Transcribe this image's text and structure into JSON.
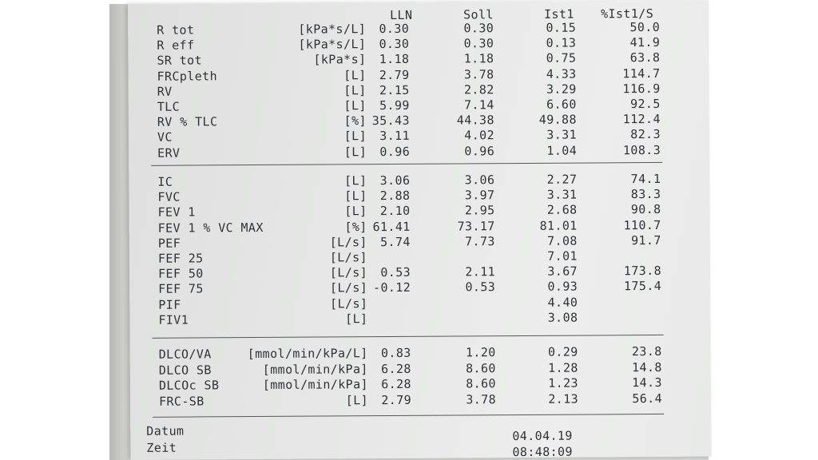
{
  "header": {
    "lln": "LLN",
    "soll": "Soll",
    "ist": "Ist1",
    "pct": "%Ist1/S"
  },
  "sections": [
    {
      "rows": [
        {
          "name": "R tot",
          "unit": "[kPa*s/L]",
          "lln": "0.30",
          "soll": "0.30",
          "ist": "0.15",
          "pct": "50.0"
        },
        {
          "name": "R eff",
          "unit": "[kPa*s/L]",
          "lln": "0.30",
          "soll": "0.30",
          "ist": "0.13",
          "pct": "41.9"
        },
        {
          "name": "SR tot",
          "unit": "[kPa*s]",
          "lln": "1.18",
          "soll": "1.18",
          "ist": "0.75",
          "pct": "63.8"
        },
        {
          "name": "FRCpleth",
          "unit": "[L]",
          "lln": "2.79",
          "soll": "3.78",
          "ist": "4.33",
          "pct": "114.7"
        },
        {
          "name": "RV",
          "unit": "[L]",
          "lln": "2.15",
          "soll": "2.82",
          "ist": "3.29",
          "pct": "116.9"
        },
        {
          "name": "TLC",
          "unit": "[L]",
          "lln": "5.99",
          "soll": "7.14",
          "ist": "6.60",
          "pct": "92.5"
        },
        {
          "name": "RV % TLC",
          "unit": "[%]",
          "lln": "35.43",
          "soll": "44.38",
          "ist": "49.88",
          "pct": "112.4"
        },
        {
          "name": "VC",
          "unit": "[L]",
          "lln": "3.11",
          "soll": "4.02",
          "ist": "3.31",
          "pct": "82.3"
        },
        {
          "name": "ERV",
          "unit": "[L]",
          "lln": "0.96",
          "soll": "0.96",
          "ist": "1.04",
          "pct": "108.3"
        }
      ]
    },
    {
      "rows": [
        {
          "name": "IC",
          "unit": "[L]",
          "lln": "3.06",
          "soll": "3.06",
          "ist": "2.27",
          "pct": "74.1"
        },
        {
          "name": "FVC",
          "unit": "[L]",
          "lln": "2.88",
          "soll": "3.97",
          "ist": "3.31",
          "pct": "83.3"
        },
        {
          "name": "FEV 1",
          "unit": "[L]",
          "lln": "2.10",
          "soll": "2.95",
          "ist": "2.68",
          "pct": "90.8"
        },
        {
          "name": "FEV 1 % VC MAX",
          "unit": "[%]",
          "lln": "61.41",
          "soll": "73.17",
          "ist": "81.01",
          "pct": "110.7"
        },
        {
          "name": "PEF",
          "unit": "[L/s]",
          "lln": "5.74",
          "soll": "7.73",
          "ist": "7.08",
          "pct": "91.7"
        },
        {
          "name": "FEF 25",
          "unit": "[L/s]",
          "lln": "",
          "soll": "",
          "ist": "7.01",
          "pct": ""
        },
        {
          "name": "FEF 50",
          "unit": "[L/s]",
          "lln": "0.53",
          "soll": "2.11",
          "ist": "3.67",
          "pct": "173.8"
        },
        {
          "name": "FEF 75",
          "unit": "[L/s]",
          "lln": "-0.12",
          "soll": "0.53",
          "ist": "0.93",
          "pct": "175.4"
        },
        {
          "name": "PIF",
          "unit": "[L/s]",
          "lln": "",
          "soll": "",
          "ist": "4.40",
          "pct": ""
        },
        {
          "name": "FIV1",
          "unit": "[L]",
          "lln": "",
          "soll": "",
          "ist": "3.08",
          "pct": ""
        }
      ]
    },
    {
      "rows": [
        {
          "name": "DLCO/VA",
          "unit": "[mmol/min/kPa/L]",
          "lln": "0.83",
          "soll": "1.20",
          "ist": "0.29",
          "pct": "23.8"
        },
        {
          "name": "DLCO SB",
          "unit": "[mmol/min/kPa]",
          "lln": "6.28",
          "soll": "8.60",
          "ist": "1.28",
          "pct": "14.8"
        },
        {
          "name": "DLCOc SB",
          "unit": "[mmol/min/kPa]",
          "lln": "6.28",
          "soll": "8.60",
          "ist": "1.23",
          "pct": "14.3"
        },
        {
          "name": "FRC-SB",
          "unit": "[L]",
          "lln": "2.79",
          "soll": "3.78",
          "ist": "2.13",
          "pct": "56.4"
        }
      ]
    }
  ],
  "footer": {
    "datum_label": "Datum",
    "datum_value": "04.04.19",
    "zeit_label": "Zeit",
    "zeit_value": "08:48:09"
  }
}
